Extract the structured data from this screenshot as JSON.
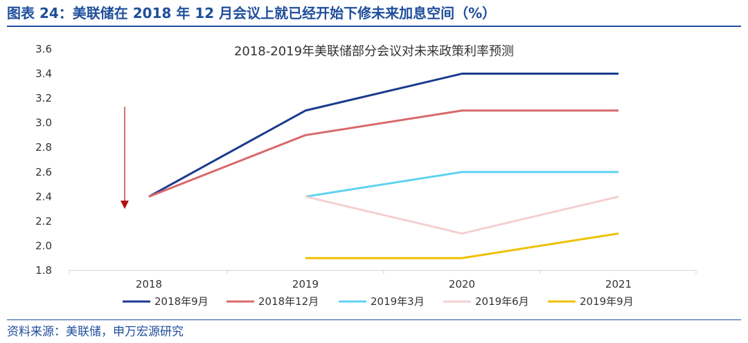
{
  "header": {
    "figure_title": "图表 24：美联储在 2018 年 12 月会议上就已经开始下修未来加息空间（%）"
  },
  "footer": {
    "source": "资料来源：美联储，申万宏源研究"
  },
  "chart_data": {
    "type": "line",
    "title": "2018-2019年美联储部分会议对未来政策利率预测",
    "x": [
      "2018",
      "2019",
      "2020",
      "2021"
    ],
    "xlabel": "",
    "ylabel": "",
    "ylim": [
      1.8,
      3.6
    ],
    "yticks": [
      "1.8",
      "2.0",
      "2.2",
      "2.4",
      "2.6",
      "2.8",
      "3.0",
      "3.2",
      "3.4",
      "3.6"
    ],
    "grid": false,
    "legend_position": "bottom",
    "series": [
      {
        "name": "2018年9月",
        "color": "#1a3a8c",
        "values": [
          2.4,
          3.1,
          3.4,
          3.4
        ]
      },
      {
        "name": "2018年12月",
        "color": "#d9686a",
        "values": [
          2.4,
          2.9,
          3.1,
          3.1
        ]
      },
      {
        "name": "2019年3月",
        "color": "#5fd3f0",
        "values": [
          null,
          2.4,
          2.6,
          2.6
        ]
      },
      {
        "name": "2019年6月",
        "color": "#f5cfd0",
        "values": [
          null,
          2.4,
          2.1,
          2.4
        ]
      },
      {
        "name": "2019年9月",
        "color": "#f0c000",
        "values": [
          null,
          1.9,
          1.9,
          2.1
        ]
      }
    ],
    "annotations": [
      {
        "type": "arrow",
        "direction": "down",
        "color": "#b01010"
      }
    ]
  }
}
